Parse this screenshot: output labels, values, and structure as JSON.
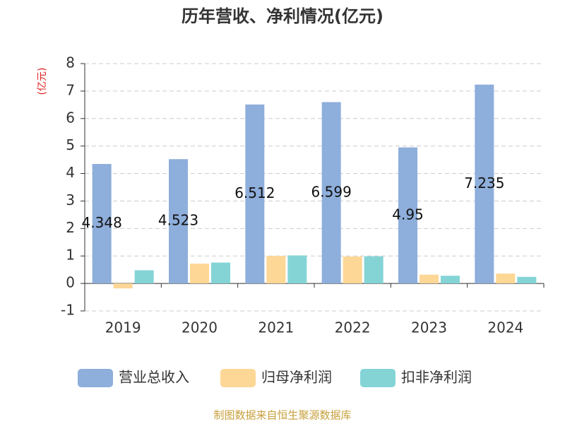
{
  "chart_data": {
    "type": "bar",
    "title": "历年营收、净利情况(亿元)",
    "unit_label": "(亿元)",
    "categories": [
      "2019",
      "2020",
      "2021",
      "2022",
      "2023",
      "2024"
    ],
    "series": [
      {
        "name": "营业总收入",
        "color": "#8eaedb",
        "values": [
          4.348,
          4.523,
          6.512,
          6.599,
          4.95,
          7.235
        ],
        "show_labels": true
      },
      {
        "name": "归母净利润",
        "color": "#fdd796",
        "values": [
          -0.18,
          0.72,
          1.0,
          0.98,
          0.32,
          0.36
        ]
      },
      {
        "name": "扣非净利润",
        "color": "#84d4d6",
        "values": [
          0.48,
          0.76,
          1.02,
          0.99,
          0.28,
          0.24
        ]
      }
    ],
    "ylim": [
      -1,
      8
    ],
    "yticks": [
      -1,
      0,
      1,
      2,
      3,
      4,
      5,
      6,
      7,
      8
    ],
    "grid": true,
    "source": "制图数据来自恒生聚源数据库"
  }
}
